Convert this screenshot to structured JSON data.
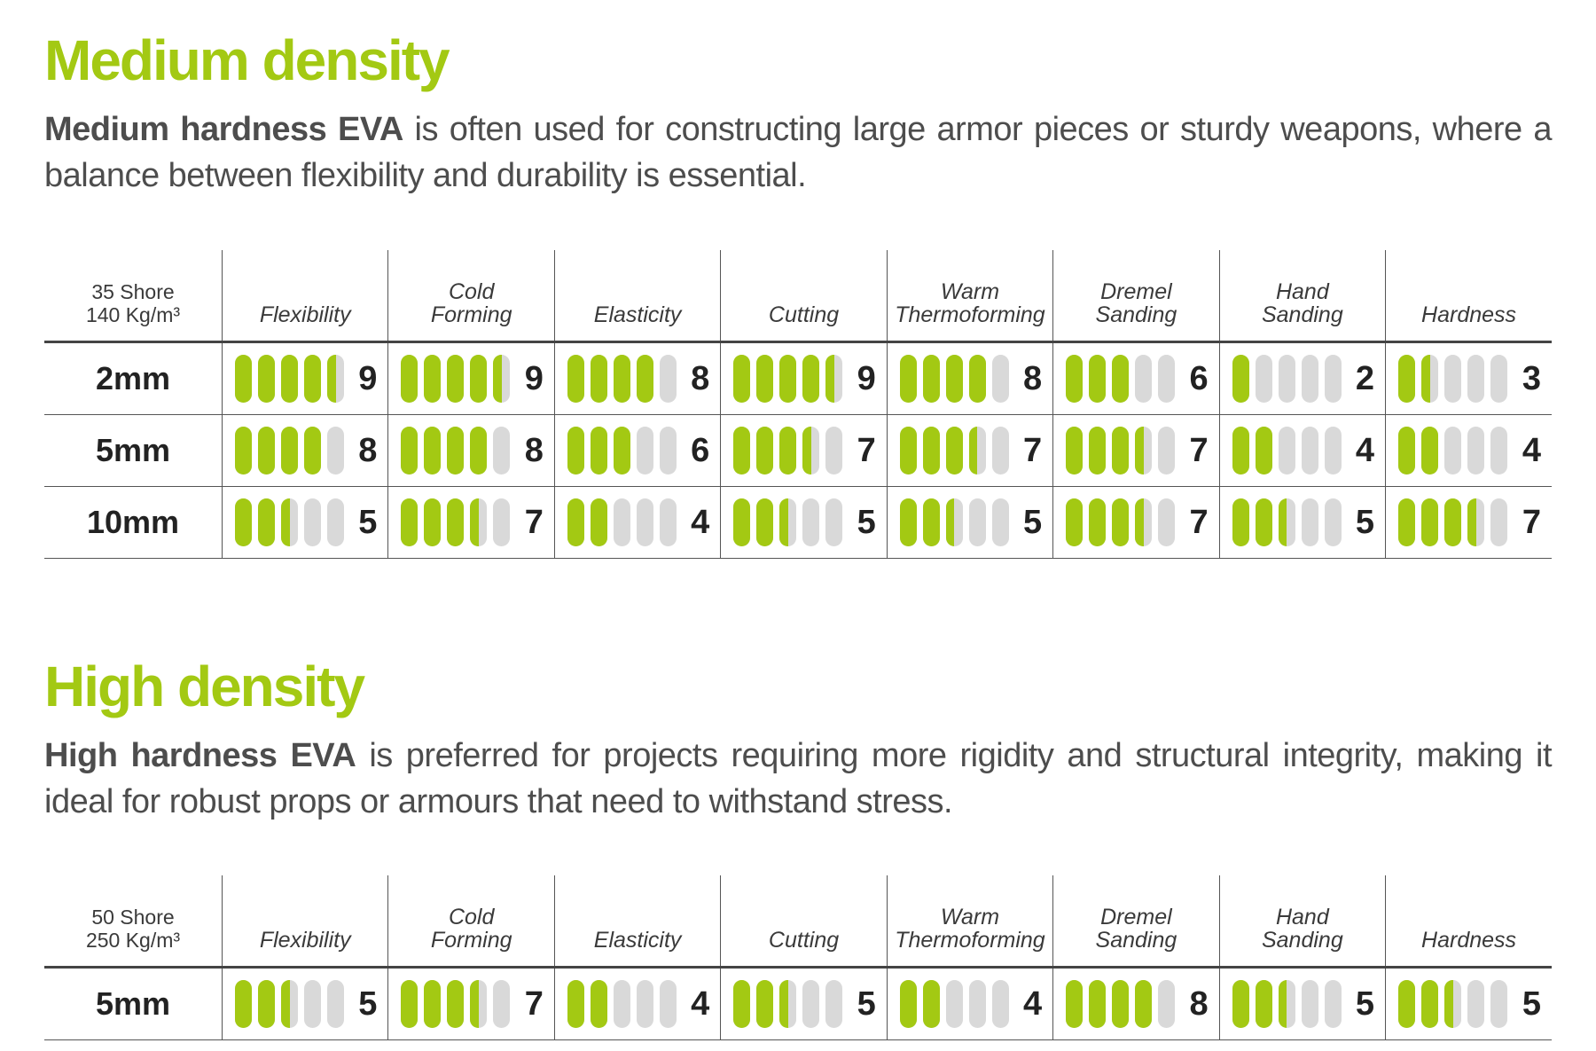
{
  "colors": {
    "accent": "#a3c913",
    "bar_empty": "#d9d9d9",
    "text": "#4d4d4d"
  },
  "medium": {
    "title": "Medium density",
    "desc_bold": "Medium hardness EVA",
    "desc_rest": " is often used for constructing large armor pieces or sturdy weapons, where a balance between flexibility and durability is essential.",
    "corner_line1": "35 Shore",
    "corner_line2": "140 Kg/m³",
    "columns": [
      {
        "l1": "",
        "l2": "Flexibility"
      },
      {
        "l1": "Cold",
        "l2": "Forming"
      },
      {
        "l1": "",
        "l2": "Elasticity"
      },
      {
        "l1": "",
        "l2": "Cutting"
      },
      {
        "l1": "Warm",
        "l2": "Thermoforming"
      },
      {
        "l1": "Dremel",
        "l2": "Sanding"
      },
      {
        "l1": "Hand",
        "l2": "Sanding"
      },
      {
        "l1": "",
        "l2": "Hardness"
      }
    ],
    "rows": [
      {
        "label": "2mm",
        "scores": [
          "9",
          "9",
          "8",
          "9",
          "8",
          "6",
          "2",
          "3"
        ]
      },
      {
        "label": "5mm",
        "scores": [
          "8",
          "8",
          "6",
          "7",
          "7",
          "7",
          "4",
          "4"
        ]
      },
      {
        "label": "10mm",
        "scores": [
          "5",
          "7",
          "4",
          "5",
          "5",
          "7",
          "5",
          "7"
        ]
      }
    ]
  },
  "high": {
    "title": "High density",
    "desc_bold": "High hardness EVA",
    "desc_rest": " is preferred for projects requiring more rigidity and structural integrity, making it ideal for robust props or armours that need to withstand stress.",
    "corner_line1": "50 Shore",
    "corner_line2": "250 Kg/m³",
    "columns": [
      {
        "l1": "",
        "l2": "Flexibility"
      },
      {
        "l1": "Cold",
        "l2": "Forming"
      },
      {
        "l1": "",
        "l2": "Elasticity"
      },
      {
        "l1": "",
        "l2": "Cutting"
      },
      {
        "l1": "Warm",
        "l2": "Thermoforming"
      },
      {
        "l1": "Dremel",
        "l2": "Sanding"
      },
      {
        "l1": "Hand",
        "l2": "Sanding"
      },
      {
        "l1": "",
        "l2": "Hardness"
      }
    ],
    "rows": [
      {
        "label": "5mm",
        "scores": [
          "5",
          "7",
          "4",
          "5",
          "4",
          "8",
          "5",
          "5"
        ]
      }
    ]
  }
}
